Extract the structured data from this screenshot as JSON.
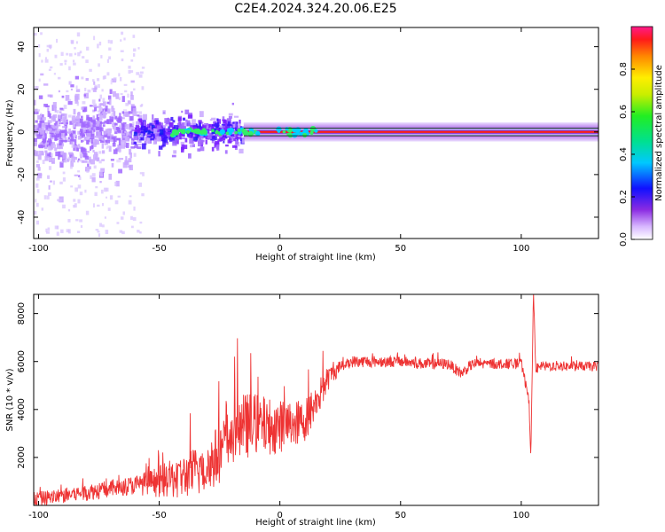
{
  "title": "C2E4.2024.324.20.06.E25",
  "colorbar": {
    "label": "Normalized spectral amplitude",
    "ticks": [
      "0.0",
      "0.2",
      "0.4",
      "0.6",
      "0.8"
    ],
    "tick_values": [
      0.0,
      0.2,
      0.4,
      0.6,
      0.8
    ],
    "range": [
      0,
      1
    ]
  },
  "chart_data": [
    {
      "type": "heatmap",
      "xlabel": "Height of straight line (km)",
      "ylabel": "Frequency (Hz)",
      "xlim": [
        -102,
        132
      ],
      "ylim": [
        -50,
        49
      ],
      "xticks": [
        -100,
        -50,
        0,
        50,
        100
      ],
      "xtick_labels": [
        "-100",
        "-50",
        "0",
        "50",
        "100"
      ],
      "yticks": [
        -40,
        -20,
        0,
        20,
        40
      ],
      "ytick_labels": [
        "-40",
        "-20",
        "0",
        "20",
        "40"
      ],
      "features": [
        {
          "x_range": [
            -102,
            -60
          ],
          "freq_spread_hz": 20,
          "amplitude": 0.2
        },
        {
          "x_range": [
            -60,
            -15
          ],
          "freq_spread_hz": 8,
          "amplitude": 0.4
        },
        {
          "x_range": [
            -15,
            132
          ],
          "freq_spread_hz": 1,
          "amplitude": 0.95
        }
      ]
    },
    {
      "type": "line",
      "xlabel": "Height of straight line (km)",
      "ylabel": "SNR (10 * v/v)",
      "xlim": [
        -102,
        132
      ],
      "ylim": [
        0,
        8800
      ],
      "xticks": [
        -100,
        -50,
        0,
        50,
        100
      ],
      "xtick_labels": [
        "-100",
        "-50",
        "0",
        "50",
        "100"
      ],
      "yticks": [
        2000,
        4000,
        6000,
        8000
      ],
      "ytick_labels": [
        "2000",
        "4000",
        "6000",
        "8000"
      ],
      "line_color": "#ee3333",
      "series": [
        {
          "x": [
            -102,
            -90,
            -80,
            -70,
            -60,
            -50,
            -40,
            -30,
            -25,
            -20,
            -15,
            -10,
            -5,
            0,
            5,
            10,
            15,
            20,
            25,
            30,
            40,
            50,
            60,
            70,
            75,
            80,
            90,
            100,
            103,
            104,
            105,
            106,
            110,
            120,
            132
          ],
          "y": [
            250,
            400,
            550,
            700,
            850,
            1000,
            1200,
            1600,
            2200,
            2900,
            3300,
            3400,
            3300,
            3300,
            3400,
            3500,
            4300,
            5300,
            5800,
            6000,
            6000,
            6000,
            5900,
            5900,
            5500,
            5900,
            5900,
            5900,
            4500,
            2000,
            8800,
            5700,
            5800,
            5800,
            5800
          ],
          "noise": [
            [
              -102,
              300
            ],
            [
              -60,
              400
            ],
            [
              -30,
              1200
            ],
            [
              -15,
              1400
            ],
            [
              0,
              1100
            ],
            [
              15,
              800
            ],
            [
              25,
              250
            ],
            [
              132,
              200
            ]
          ]
        }
      ]
    }
  ]
}
